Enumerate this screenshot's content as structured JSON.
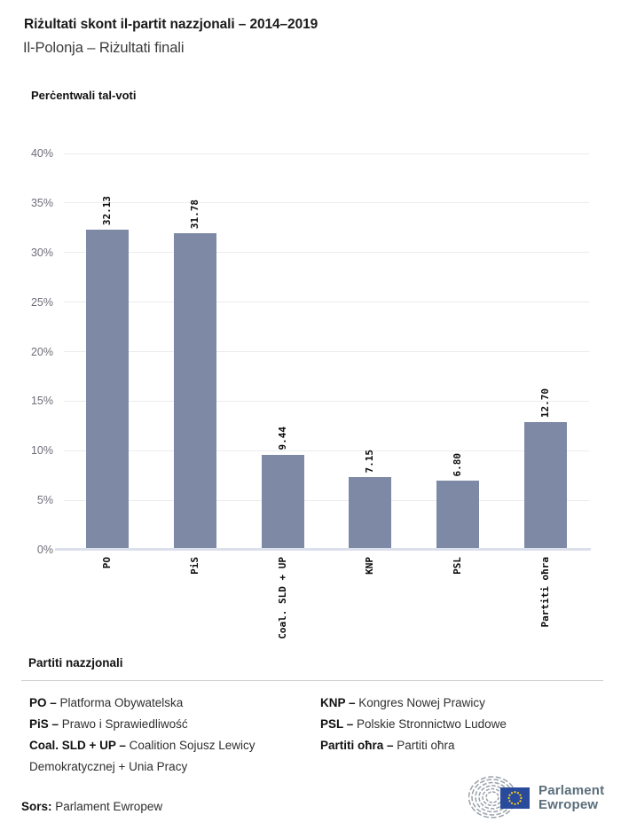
{
  "header": {
    "title": "Riżultati skont il-partit nazzjonali – 2014–2019",
    "subtitle": "Il-Polonja – Riżultati finali"
  },
  "chart_data": {
    "type": "bar",
    "title": "Perċentwali tal-voti",
    "categories": [
      "PO",
      "PiS",
      "Coal. SLD + UP",
      "KNP",
      "PSL",
      "Partiti oħra"
    ],
    "values": [
      32.13,
      31.78,
      9.44,
      7.15,
      6.8,
      12.7
    ],
    "value_labels": [
      "32.13",
      "31.78",
      "9.44",
      "7.15",
      "6.80",
      "12.70"
    ],
    "xlabel": "",
    "ylabel": "Perċentwali tal-voti",
    "ylim": [
      0,
      40
    ],
    "ytick_step": 5,
    "ytick_labels": [
      "0%",
      "5%",
      "10%",
      "15%",
      "20%",
      "25%",
      "30%",
      "35%",
      "40%"
    ],
    "grid": true,
    "legend_position": "none",
    "bar_color": "#7d89a5",
    "tick_label_rotation_deg": -90,
    "value_label_rotation_deg": -90
  },
  "legend": {
    "heading": "Partiti nazzjonali",
    "separator": "–",
    "columns": [
      [
        {
          "abbr": "PO",
          "name": "Platforma Obywatelska"
        },
        {
          "abbr": "PiS",
          "name": "Prawo i Sprawiedliwość"
        },
        {
          "abbr": "Coal. SLD + UP",
          "name": "Coalition Sojusz Lewicy Demokratycznej + Unia Pracy"
        }
      ],
      [
        {
          "abbr": "KNP",
          "name": "Kongres Nowej Prawicy"
        },
        {
          "abbr": "PSL",
          "name": "Polskie Stronnictwo Ludowe"
        },
        {
          "abbr": "Partiti oħra",
          "name": "Partiti oħra"
        }
      ]
    ]
  },
  "footer": {
    "source_label": "Sors:",
    "source_value": "Parlament Ewropew",
    "logo": {
      "line1": "Parlament",
      "line2": "Ewropew"
    }
  },
  "colors": {
    "bar": "#7d89a5",
    "gridline": "#ececec",
    "axis_line": "#dce0ec",
    "axis_label": "#6e6e79",
    "title": "#1a1a1a",
    "subtitle": "#3c3c3c",
    "body_text": "#2f2f2f",
    "divider": "#cfcfcf",
    "logo_text": "#5b6e7b",
    "flag_blue": "#2a4b9c",
    "star_yellow": "#ffd617",
    "hemicycle_gray": "#9aa2a9"
  }
}
